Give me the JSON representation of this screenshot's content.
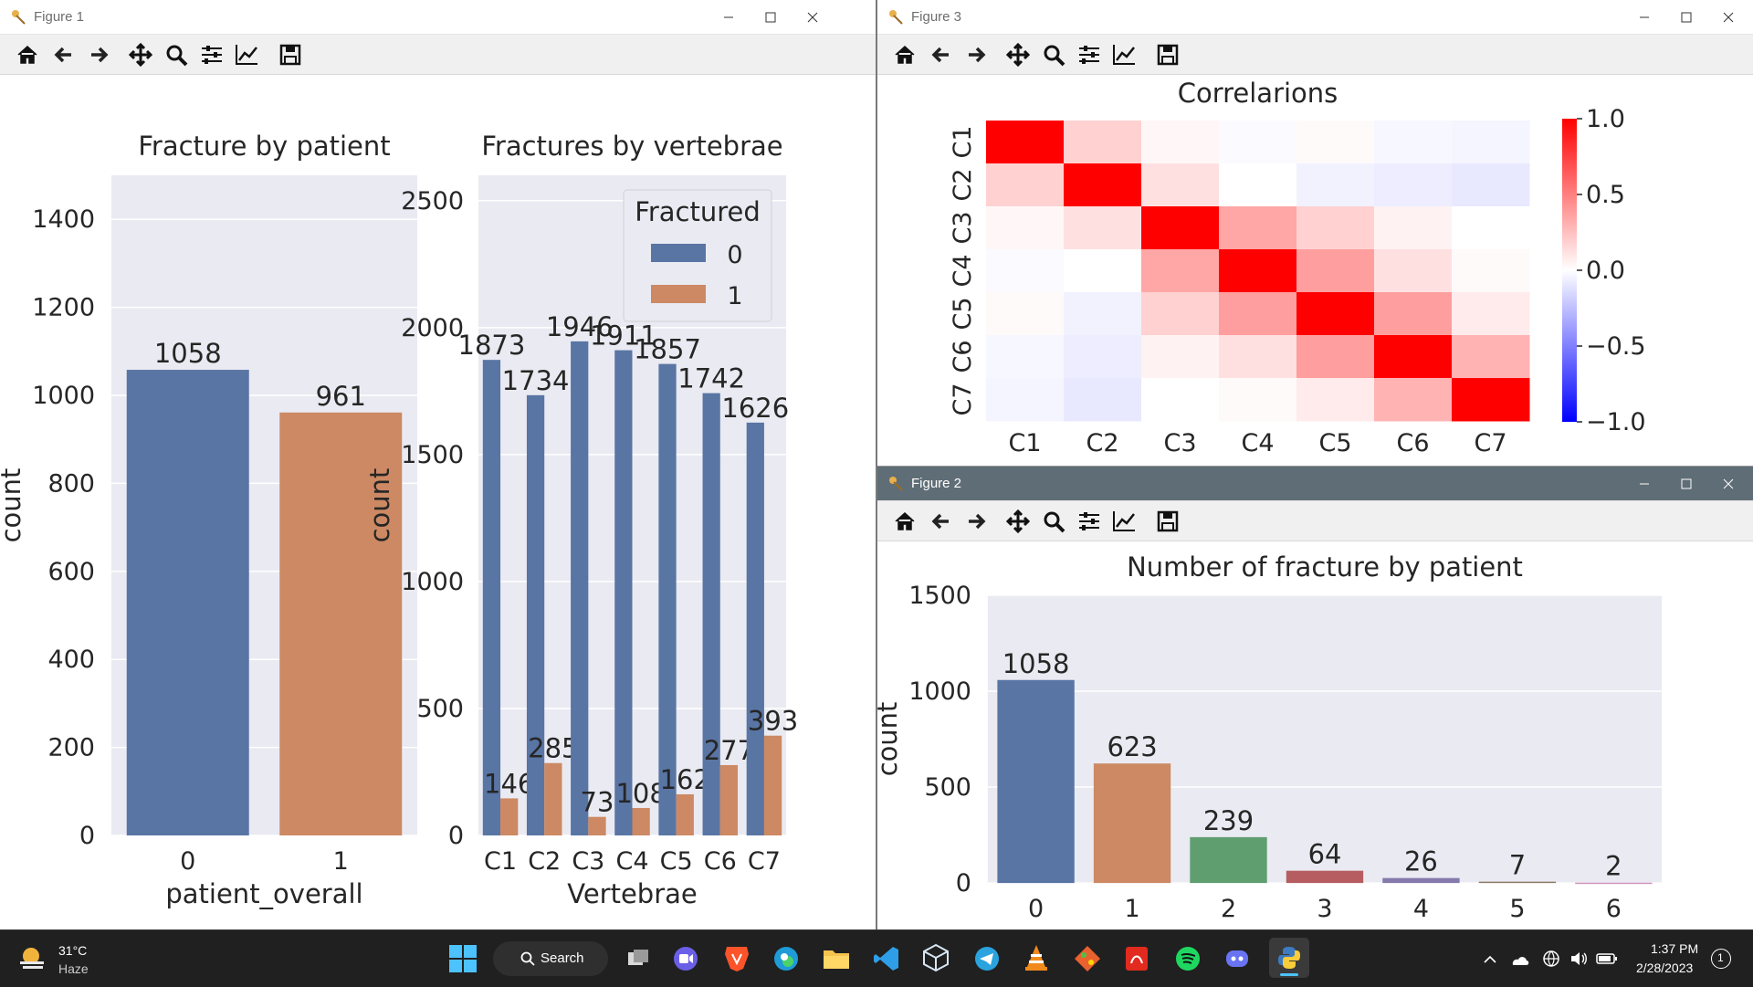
{
  "windows": {
    "figure1": {
      "title": "Figure 1",
      "left_chart": {
        "title": "Fracture by patient",
        "xlabel": "patient_overall",
        "ylabel": "count"
      },
      "right_chart": {
        "title": "Fractures by vertebrae",
        "xlabel": "Vertebrae",
        "ylabel": "count",
        "legend_title": "Fractured"
      }
    },
    "figure2": {
      "title": "Figure 2",
      "chart": {
        "title": "Number of fracture by patient",
        "ylabel": "count"
      }
    },
    "figure3": {
      "title": "Figure 3",
      "chart": {
        "title": "Correlarions"
      }
    }
  },
  "toolbar_icons": [
    "home-icon",
    "back-icon",
    "forward-icon",
    "pan-icon",
    "zoom-icon",
    "configure-icon",
    "edit-axis-icon",
    "save-icon"
  ],
  "colors": {
    "blue": "#5975a4",
    "orange": "#cc8963",
    "green": "#5f9e6e",
    "red": "#b55d60",
    "purple": "#857aab",
    "brown": "#8d7866",
    "pink": "#d095bf",
    "axes_bg": "#eaeaf2",
    "taskbar": "#202020"
  },
  "chart_data": [
    {
      "type": "bar",
      "title": "Fracture by patient",
      "xlabel": "patient_overall",
      "ylabel": "count",
      "categories": [
        "0",
        "1"
      ],
      "values": [
        1058,
        961
      ],
      "data_labels": [
        "1058",
        "961"
      ],
      "ylim": [
        0,
        1500
      ],
      "yticks": [
        "0",
        "200",
        "400",
        "600",
        "800",
        "1000",
        "1200",
        "1400"
      ],
      "grid": true
    },
    {
      "type": "bar",
      "title": "Fractures by vertebrae",
      "xlabel": "Vertebrae",
      "ylabel": "count",
      "categories": [
        "C1",
        "C2",
        "C3",
        "C4",
        "C5",
        "C6",
        "C7"
      ],
      "series": [
        {
          "name": "0",
          "values": [
            1873,
            1734,
            1946,
            1911,
            1857,
            1742,
            1626
          ]
        },
        {
          "name": "1",
          "values": [
            146,
            285,
            73,
            108,
            162,
            277,
            393
          ]
        }
      ],
      "legend_title": "Fractured",
      "legend_position": "top-right",
      "ylim": [
        0,
        2600
      ],
      "yticks": [
        "0",
        "500",
        "1000",
        "1500",
        "2000",
        "2500"
      ],
      "grid": true
    },
    {
      "type": "heatmap",
      "title": "Correlarions",
      "x": [
        "C1",
        "C2",
        "C3",
        "C4",
        "C5",
        "C6",
        "C7"
      ],
      "y": [
        "C1",
        "C2",
        "C3",
        "C4",
        "C5",
        "C6",
        "C7"
      ],
      "values": [
        [
          1.0,
          0.18,
          0.03,
          -0.02,
          0.02,
          -0.03,
          -0.04
        ],
        [
          0.18,
          1.0,
          0.12,
          0.0,
          -0.05,
          -0.07,
          -0.09
        ],
        [
          0.03,
          0.12,
          1.0,
          0.35,
          0.18,
          0.05,
          0.0
        ],
        [
          -0.02,
          0.0,
          0.35,
          1.0,
          0.38,
          0.12,
          0.02
        ],
        [
          0.02,
          -0.05,
          0.18,
          0.38,
          1.0,
          0.38,
          0.08
        ],
        [
          -0.03,
          -0.07,
          0.05,
          0.12,
          0.38,
          1.0,
          0.3
        ],
        [
          -0.04,
          -0.09,
          0.0,
          0.02,
          0.08,
          0.3,
          1.0
        ]
      ],
      "colorbar_ticks": [
        "1.0",
        "0.5",
        "0.0",
        "−0.5",
        "−1.0"
      ],
      "vmin": -1.0,
      "vmax": 1.0
    },
    {
      "type": "bar",
      "title": "Number of fracture by patient",
      "ylabel": "count",
      "categories": [
        "0",
        "1",
        "2",
        "3",
        "4",
        "5",
        "6"
      ],
      "values": [
        1058,
        623,
        239,
        64,
        26,
        7,
        2
      ],
      "data_labels": [
        "1058",
        "623",
        "239",
        "64",
        "26",
        "7",
        "2"
      ],
      "ylim": [
        0,
        1500
      ],
      "yticks": [
        "0",
        "500",
        "1000",
        "1500"
      ],
      "grid": true
    }
  ],
  "taskbar": {
    "weather_temp": "31°C",
    "weather_desc": "Haze",
    "search_label": "Search",
    "time": "1:37 PM",
    "date": "2/28/2023",
    "notification_count": "1"
  }
}
